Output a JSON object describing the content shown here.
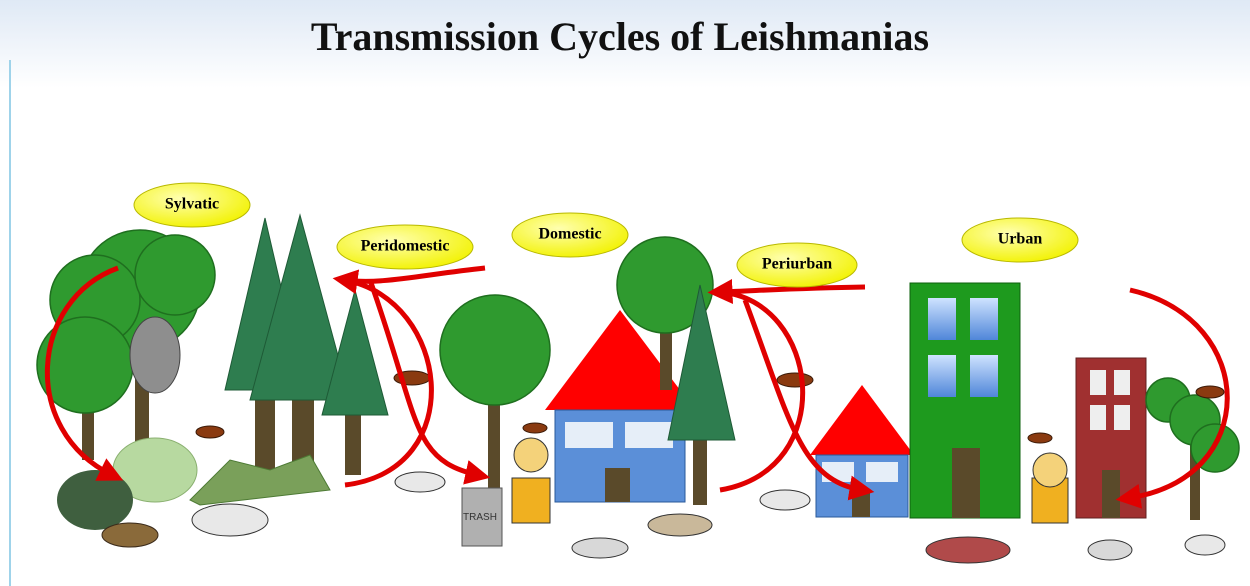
{
  "title": "Transmission Cycles of Leishmanias",
  "cycles": [
    {
      "label": "Sylvatic"
    },
    {
      "label": "Peridomestic"
    },
    {
      "label": "Domestic"
    },
    {
      "label": "Periurban"
    },
    {
      "label": "Urban"
    }
  ],
  "trash_label": "TRASH"
}
